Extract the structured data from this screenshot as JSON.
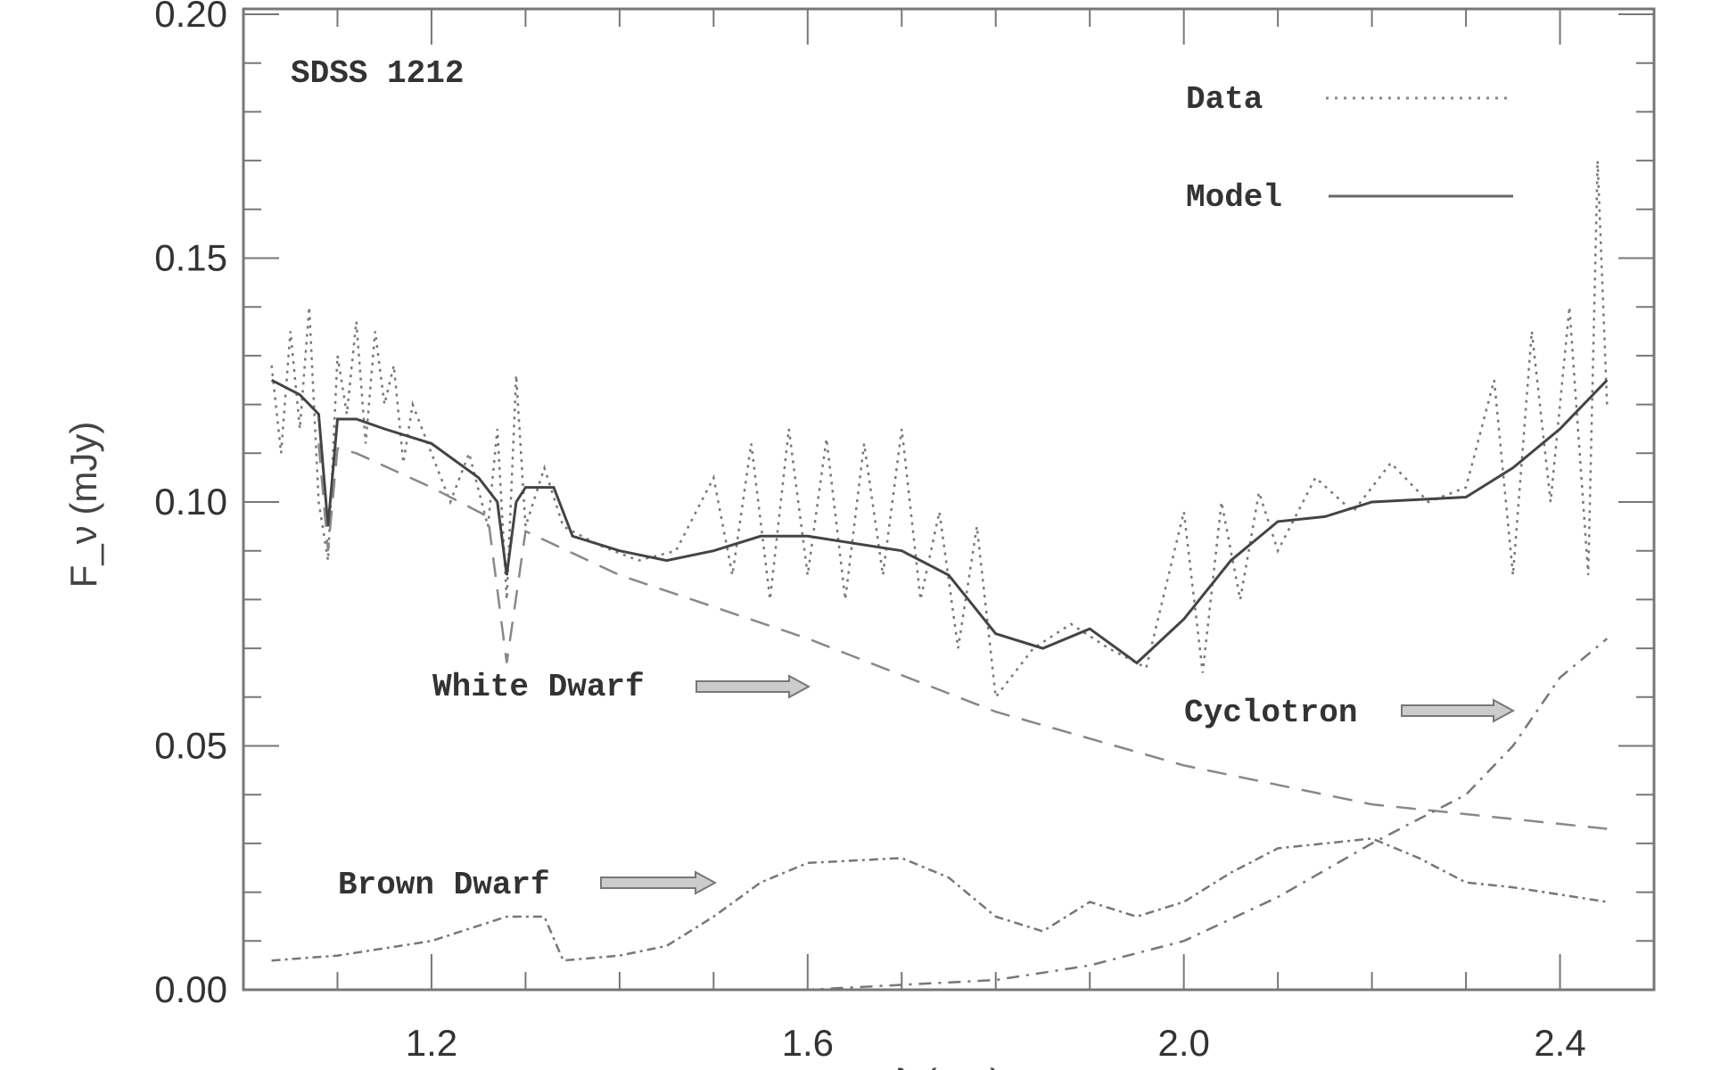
{
  "chart_data": {
    "type": "line",
    "title": "SDSS 1212",
    "xlabel": "λ (μm)",
    "ylabel": "F_ν (mJy)",
    "xlim": [
      1.0,
      2.5
    ],
    "ylim": [
      0.0,
      0.2
    ],
    "x_ticks": [
      1.2,
      1.6,
      2.0,
      2.4
    ],
    "x_tick_labels": [
      "1.2",
      "1.6",
      "2.0",
      "2.4"
    ],
    "y_ticks": [
      0.0,
      0.05,
      0.1,
      0.15,
      0.2
    ],
    "y_tick_labels": [
      "0.00",
      "0.05",
      "0.10",
      "0.15",
      "0.20"
    ],
    "grid": false,
    "legend_position": "top-right",
    "legend": [
      {
        "label": "Data",
        "style": "dotted"
      },
      {
        "label": "Model",
        "style": "solid"
      }
    ],
    "annotations": {
      "white_dwarf": "White Dwarf",
      "cyclotron": "Cyclotron",
      "brown_dwarf": "Brown Dwarf"
    },
    "line_color": "#555555",
    "series": [
      {
        "name": "Data",
        "style": "dotted",
        "x": [
          1.03,
          1.04,
          1.05,
          1.06,
          1.07,
          1.08,
          1.09,
          1.1,
          1.11,
          1.12,
          1.13,
          1.14,
          1.15,
          1.16,
          1.17,
          1.18,
          1.2,
          1.22,
          1.24,
          1.26,
          1.27,
          1.28,
          1.29,
          1.3,
          1.32,
          1.34,
          1.38,
          1.42,
          1.46,
          1.5,
          1.52,
          1.54,
          1.56,
          1.58,
          1.6,
          1.62,
          1.64,
          1.66,
          1.68,
          1.7,
          1.72,
          1.74,
          1.76,
          1.78,
          1.8,
          1.84,
          1.88,
          1.92,
          1.96,
          2.0,
          2.02,
          2.04,
          2.06,
          2.08,
          2.1,
          2.14,
          2.18,
          2.22,
          2.26,
          2.3,
          2.33,
          2.35,
          2.37,
          2.39,
          2.41,
          2.43,
          2.44,
          2.45
        ],
        "y": [
          0.128,
          0.11,
          0.135,
          0.115,
          0.14,
          0.1,
          0.088,
          0.13,
          0.118,
          0.137,
          0.112,
          0.135,
          0.12,
          0.128,
          0.108,
          0.12,
          0.11,
          0.1,
          0.11,
          0.095,
          0.115,
          0.08,
          0.126,
          0.095,
          0.107,
          0.095,
          0.091,
          0.088,
          0.09,
          0.105,
          0.085,
          0.112,
          0.08,
          0.115,
          0.085,
          0.113,
          0.08,
          0.112,
          0.085,
          0.115,
          0.08,
          0.098,
          0.07,
          0.095,
          0.06,
          0.07,
          0.075,
          0.07,
          0.066,
          0.098,
          0.065,
          0.1,
          0.08,
          0.102,
          0.09,
          0.105,
          0.098,
          0.108,
          0.1,
          0.103,
          0.125,
          0.085,
          0.135,
          0.1,
          0.14,
          0.085,
          0.17,
          0.12
        ]
      },
      {
        "name": "Model",
        "style": "solid",
        "x": [
          1.03,
          1.06,
          1.08,
          1.09,
          1.1,
          1.12,
          1.15,
          1.2,
          1.25,
          1.27,
          1.28,
          1.29,
          1.3,
          1.33,
          1.35,
          1.4,
          1.45,
          1.5,
          1.55,
          1.6,
          1.7,
          1.75,
          1.8,
          1.85,
          1.9,
          1.95,
          2.0,
          2.05,
          2.1,
          2.15,
          2.2,
          2.3,
          2.35,
          2.4,
          2.45
        ],
        "y": [
          0.125,
          0.122,
          0.118,
          0.095,
          0.117,
          0.117,
          0.115,
          0.112,
          0.105,
          0.1,
          0.085,
          0.1,
          0.103,
          0.103,
          0.093,
          0.09,
          0.088,
          0.09,
          0.093,
          0.093,
          0.09,
          0.085,
          0.073,
          0.07,
          0.074,
          0.067,
          0.076,
          0.088,
          0.096,
          0.097,
          0.1,
          0.101,
          0.107,
          0.115,
          0.125
        ]
      },
      {
        "style": "dashed",
        "x": [
          1.08,
          1.09,
          1.1,
          1.12,
          1.2,
          1.26,
          1.28,
          1.3,
          1.4,
          1.6,
          1.8,
          2.0,
          2.2,
          2.45
        ],
        "y": [
          0.112,
          0.09,
          0.111,
          0.11,
          0.103,
          0.097,
          0.067,
          0.094,
          0.085,
          0.072,
          0.057,
          0.046,
          0.038,
          0.033
        ]
      },
      {
        "style": "dash-dot",
        "x": [
          1.03,
          1.6,
          1.7,
          1.8,
          1.9,
          2.0,
          2.1,
          2.2,
          2.3,
          2.35,
          2.4,
          2.45
        ],
        "y": [
          0.0,
          0.0,
          0.001,
          0.002,
          0.005,
          0.01,
          0.019,
          0.03,
          0.04,
          0.05,
          0.064,
          0.072
        ]
      },
      {
        "style": "dash-dot-noisy",
        "x": [
          1.03,
          1.1,
          1.2,
          1.28,
          1.32,
          1.34,
          1.4,
          1.45,
          1.5,
          1.55,
          1.6,
          1.7,
          1.75,
          1.8,
          1.85,
          1.9,
          1.95,
          2.0,
          2.05,
          2.1,
          2.2,
          2.25,
          2.3,
          2.35,
          2.45
        ],
        "y": [
          0.006,
          0.007,
          0.01,
          0.015,
          0.015,
          0.006,
          0.007,
          0.009,
          0.015,
          0.022,
          0.026,
          0.027,
          0.023,
          0.015,
          0.012,
          0.018,
          0.015,
          0.018,
          0.024,
          0.029,
          0.031,
          0.027,
          0.022,
          0.021,
          0.018
        ]
      }
    ]
  }
}
